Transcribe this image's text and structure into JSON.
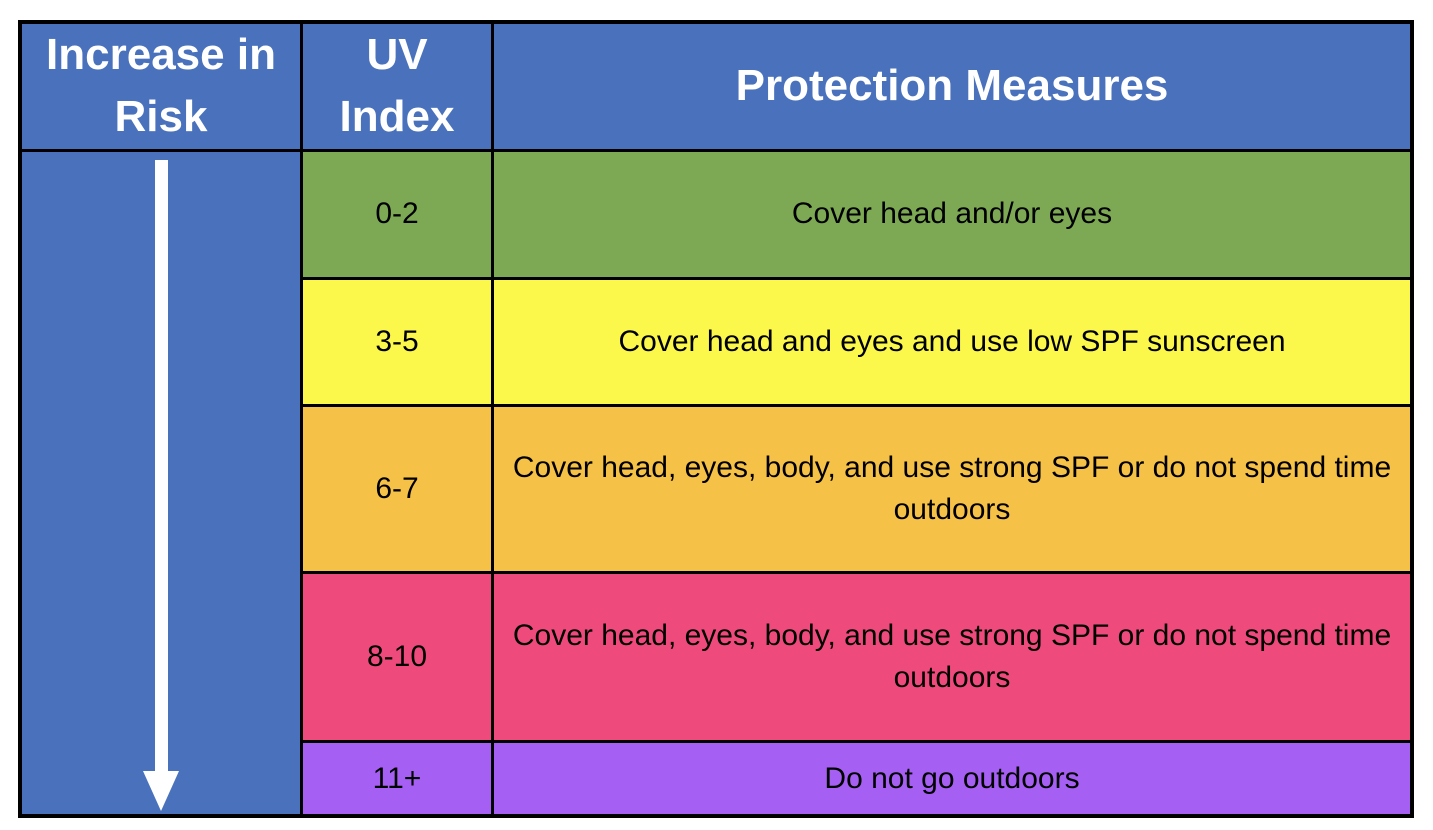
{
  "table": {
    "headers": {
      "risk": "Increase in Risk",
      "uv_index": "UV Index",
      "protection": "Protection Measures"
    },
    "rows": [
      {
        "uv_index": "0-2",
        "protection": "Cover head and/or eyes",
        "color": "#7DA954"
      },
      {
        "uv_index": "3-5",
        "protection": "Cover head and eyes and use low SPF sunscreen",
        "color": "#FBF74B"
      },
      {
        "uv_index": "6-7",
        "protection": "Cover head, eyes, body, and use strong SPF or do not spend time outdoors",
        "color": "#F5C147"
      },
      {
        "uv_index": "8-10",
        "protection": "Cover head, eyes, body, and use strong SPF or do not spend time outdoors",
        "color": "#EE4B7C"
      },
      {
        "uv_index": "11+",
        "protection": "Do not go outdoors",
        "color": "#A55FF2"
      }
    ],
    "colors": {
      "header_bg": "#4A72BC",
      "header_text": "#FFFFFF",
      "body_text": "#000000",
      "border": "#000000",
      "arrow": "#FFFFFF"
    },
    "arrow_icon": "down-arrow"
  },
  "chart_data": {
    "type": "table",
    "title": "",
    "columns": [
      "Increase in Risk",
      "UV Index",
      "Protection Measures"
    ],
    "rows": [
      {
        "uv_index": "0-2",
        "protection_measures": "Cover head and/or eyes",
        "row_color": "#7DA954"
      },
      {
        "uv_index": "3-5",
        "protection_measures": "Cover head and eyes and use low SPF sunscreen",
        "row_color": "#FBF74B"
      },
      {
        "uv_index": "6-7",
        "protection_measures": "Cover head, eyes, body, and use strong SPF or do not spend time outdoors",
        "row_color": "#F5C147"
      },
      {
        "uv_index": "8-10",
        "protection_measures": "Cover head, eyes, body, and use strong SPF or do not spend time outdoors",
        "row_color": "#EE4B7C"
      },
      {
        "uv_index": "11+",
        "protection_measures": "Do not go outdoors",
        "row_color": "#A55FF2"
      }
    ],
    "layout_hints": {
      "header_background": "#4A72BC",
      "first_column_annotation": "white downward arrow spanning all data rows indicating risk increases from UV 0-2 (top) to UV 11+ (bottom)",
      "grid": "black borders around every cell"
    }
  }
}
